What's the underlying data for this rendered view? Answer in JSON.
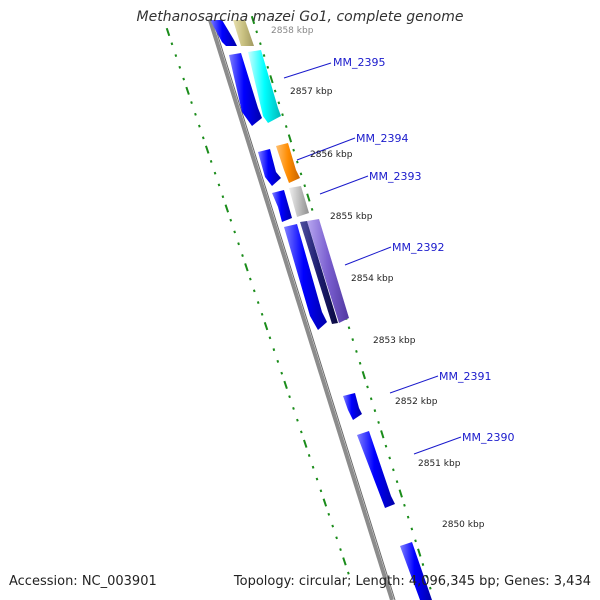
{
  "title": "Methanosarcina mazei Go1, complete genome",
  "footer": {
    "accession": "Accession: NC_003901",
    "summary": "Topology: circular; Length: 4,096,345 bp; Genes: 3,434"
  },
  "colors": {
    "backbone": "#8c8c8c",
    "cds": "#0000ff",
    "gene_label": "#1a1acc",
    "tick": "#1a8c1a",
    "cyan": "#00ffff",
    "orange": "#ff8c00",
    "gray": "#bfbfbf",
    "navy": "#1c1c6e",
    "purple": "#7a5fd0",
    "olive": "#c8c080"
  },
  "kbp_labels": [
    "2858 kbp",
    "2857 kbp",
    "2856 kbp",
    "2855 kbp",
    "2854 kbp",
    "2853 kbp",
    "2852 kbp",
    "2851 kbp",
    "2850 kbp"
  ],
  "gene_labels": [
    "MM_2395",
    "MM_2394",
    "MM_2393",
    "MM_2392",
    "MM_2391",
    "MM_2390"
  ]
}
